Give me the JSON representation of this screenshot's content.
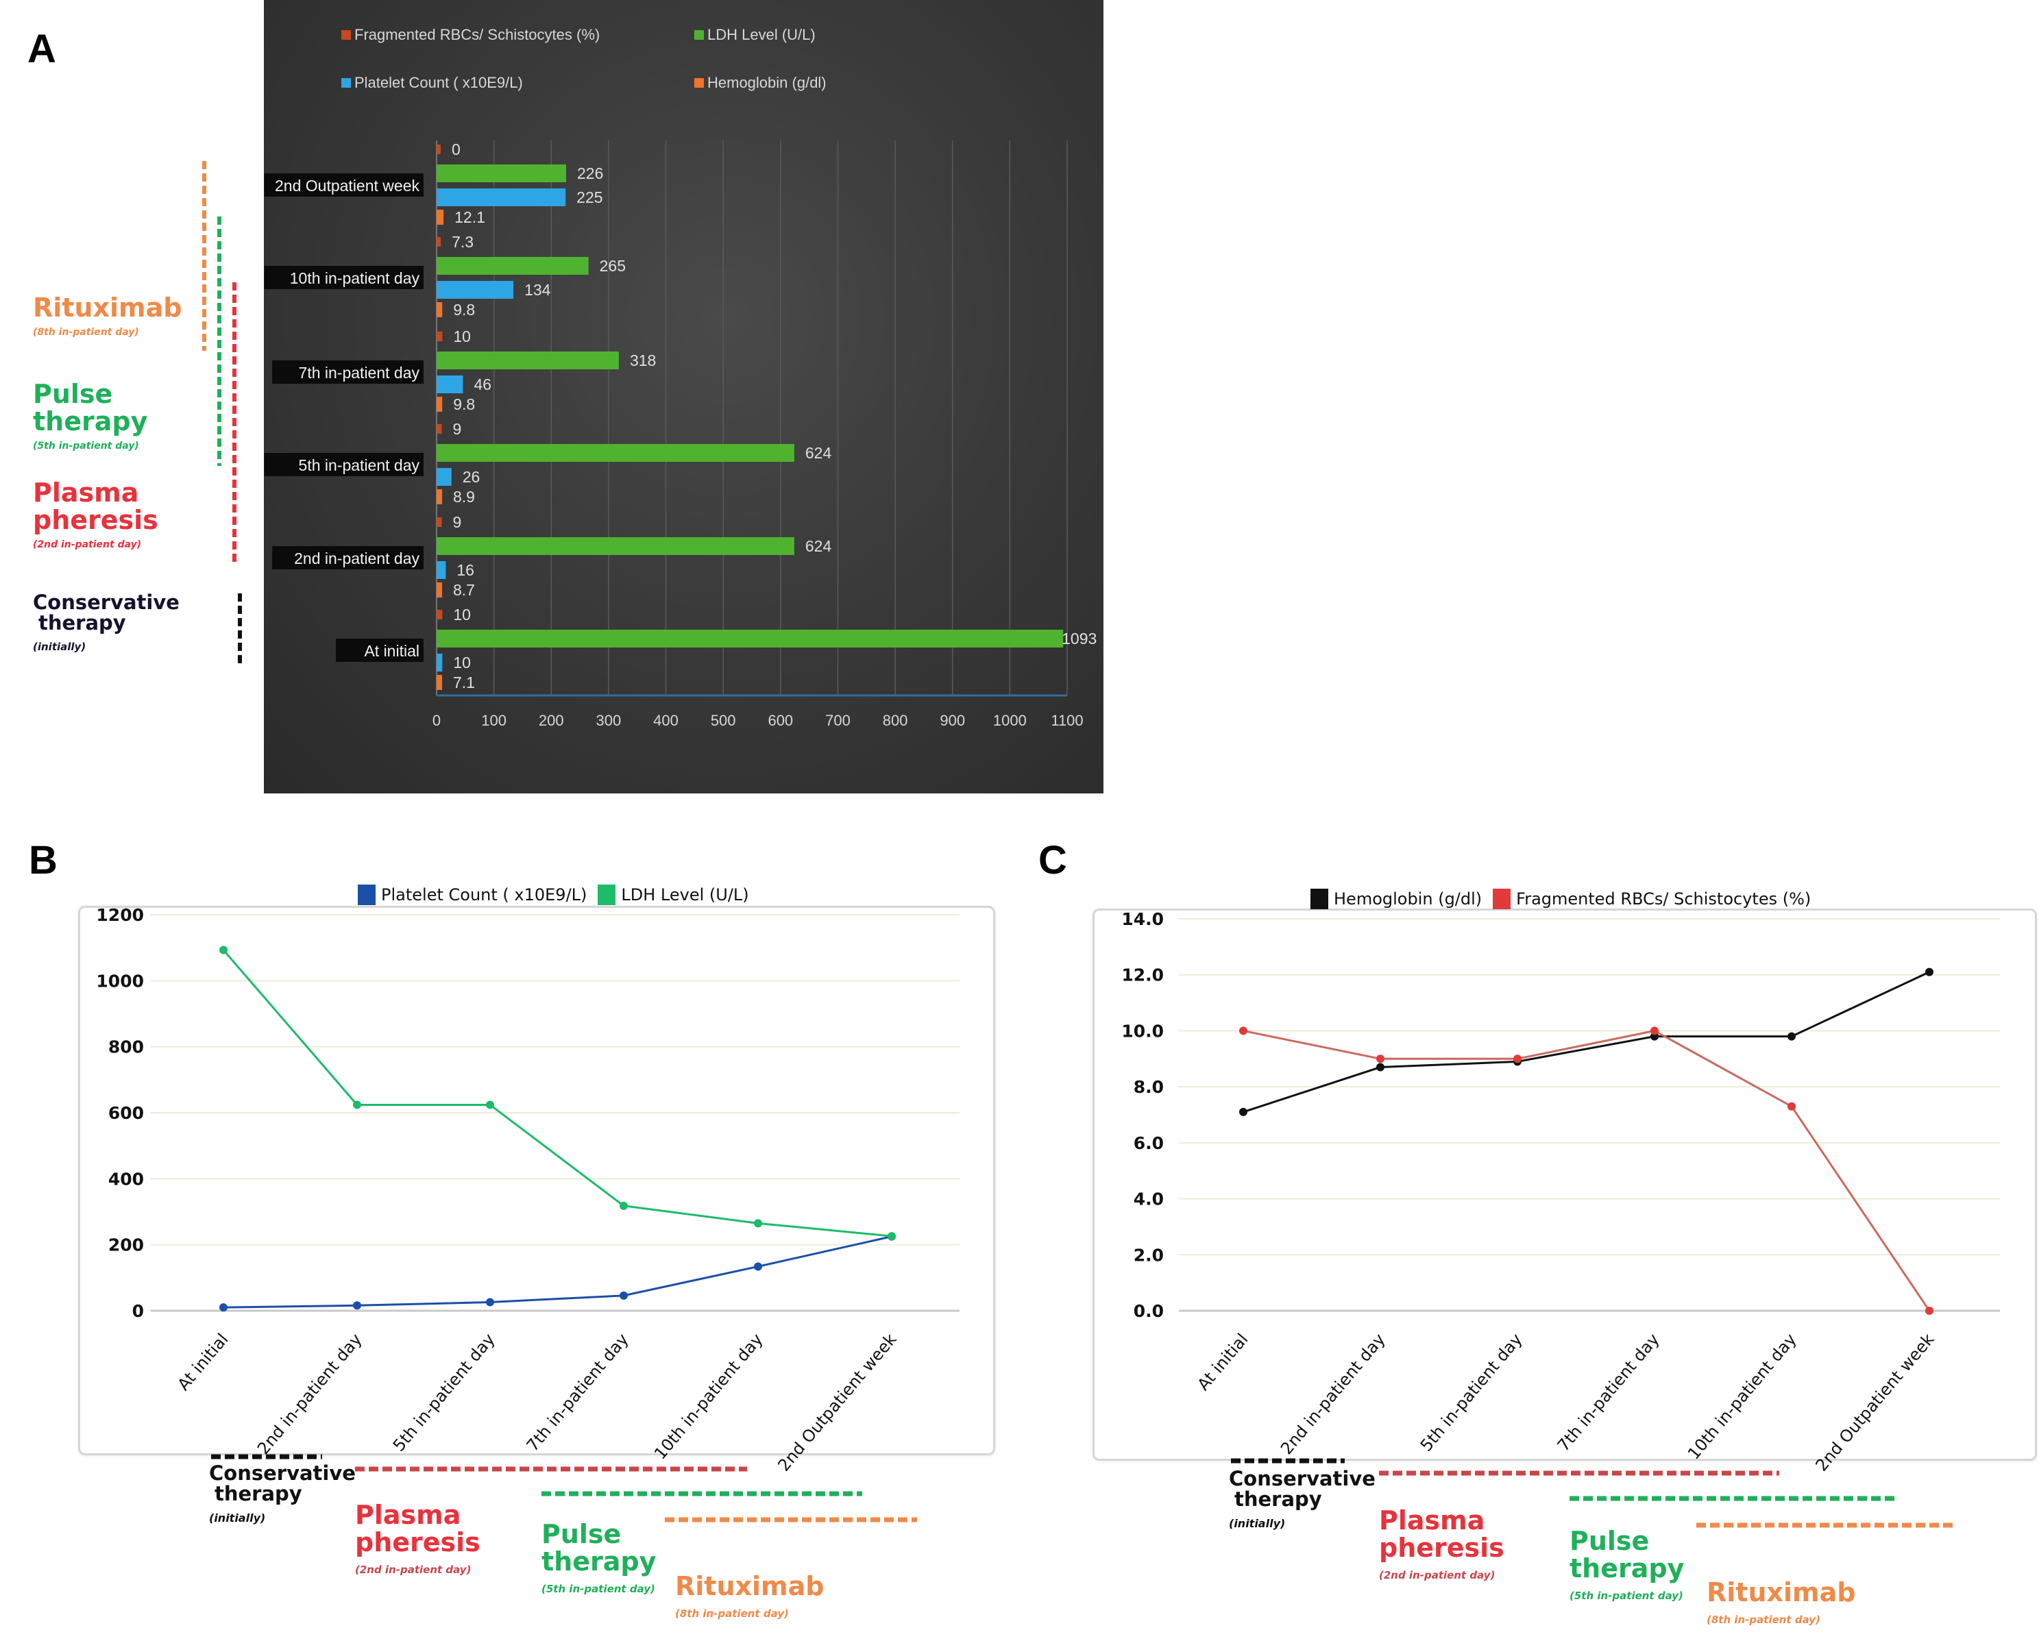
{
  "figure": {
    "panel_labels": [
      "A",
      "B",
      "C"
    ]
  },
  "treatments": [
    {
      "name": "Conservative therapy",
      "line1": "Conservative",
      "line2": "therapy",
      "when": "(initially)",
      "color": "#111111"
    },
    {
      "name": "Plasma pheresis",
      "line1": "Plasma",
      "line2": "pheresis",
      "when": "(2nd in-patient day)",
      "color": "#e8323c"
    },
    {
      "name": "Pulse therapy",
      "line1": "Pulse",
      "line2": "therapy",
      "when": "(5th in-patient day)",
      "color": "#1fb05a"
    },
    {
      "name": "Rituximab",
      "line1": "Rituximab",
      "line2": "",
      "when": "(8th in-patient day)",
      "color": "#f08a48"
    }
  ],
  "chart_data": [
    {
      "panel": "A",
      "type": "bar",
      "orientation": "horizontal",
      "categories": [
        "At initial",
        "2nd in-patient day",
        "5th  in-patient day",
        "7th in-patient day",
        "10th in-patient day",
        "2nd Outpatient week"
      ],
      "series": [
        {
          "name": "Fragmented RBCs/ Schistocytes (%)",
          "color": "#c9481e",
          "values": [
            10,
            9,
            9,
            10,
            7.3,
            0
          ]
        },
        {
          "name": "LDH Level (U/L)",
          "color": "#4fb330",
          "values": [
            1093,
            624,
            624,
            318,
            265,
            226
          ]
        },
        {
          "name": "Platelet Count ( x10E9/L)",
          "color": "#2ea6e6",
          "values": [
            10,
            16,
            26,
            46,
            134,
            225
          ]
        },
        {
          "name": "Hemoglobin (g/dl)",
          "color": "#f0742a",
          "values": [
            7.1,
            8.7,
            8.9,
            9.8,
            9.8,
            12.1
          ]
        }
      ],
      "data_labels": [
        [
          "10",
          "1093",
          "10",
          "7.1"
        ],
        [
          "9",
          "624",
          "16",
          "8.7"
        ],
        [
          "9",
          "624",
          "26",
          "8.9"
        ],
        [
          "10",
          "318",
          "46",
          "9.8"
        ],
        [
          "7.3",
          "265",
          "134",
          "9.8"
        ],
        [
          "0",
          "226",
          "225",
          "12.1"
        ]
      ],
      "xlim": [
        0,
        1100
      ],
      "xticks": [
        "0",
        "100",
        "200",
        "300",
        "400",
        "500",
        "600",
        "700",
        "800",
        "900",
        "1000",
        "1100"
      ],
      "legend_labels": [
        "Fragmented RBCs/ Schistocytes (%)",
        "LDH Level (U/L)",
        "Platelet Count ( x10E9/L)",
        "Hemoglobin (g/dl)"
      ],
      "legend_position": "top",
      "grid": true,
      "title": "",
      "xlabel": "",
      "ylabel": ""
    },
    {
      "panel": "B",
      "type": "line",
      "x": [
        "At initial",
        "2nd in-patient day",
        "5th in-patient day",
        "7th in-patient day",
        "10th in-patient day",
        "2nd Outpatient week"
      ],
      "series": [
        {
          "name": "Platelet Count ( x10E9/L)",
          "color": "#1b4fa8",
          "values": [
            10,
            16,
            26,
            46,
            134,
            225
          ]
        },
        {
          "name": "LDH Level (U/L)",
          "color": "#1dbb6a",
          "values": [
            1093,
            624,
            624,
            318,
            265,
            226
          ]
        }
      ],
      "ylim": [
        0,
        1200
      ],
      "yticks": [
        "0",
        "200",
        "400",
        "600",
        "800",
        "1000",
        "1200"
      ],
      "legend_position": "top",
      "grid": true,
      "title": "",
      "xlabel": "",
      "ylabel": ""
    },
    {
      "panel": "C",
      "type": "line",
      "x": [
        "At initial",
        "2nd in-patient day",
        "5th in-patient day",
        "7th in-patient day",
        "10th in-patient day",
        "2nd Outpatient week"
      ],
      "series": [
        {
          "name": "Hemoglobin (g/dl)",
          "color": "#111111",
          "values": [
            7.1,
            8.7,
            8.9,
            9.8,
            9.8,
            12.1
          ]
        },
        {
          "name": "Fragmented RBCs/ Schistocytes (%)",
          "color": "#e03a3a",
          "line_color": "#c96a60",
          "values": [
            10,
            9,
            9,
            10,
            7.3,
            0
          ]
        }
      ],
      "ylim": [
        0,
        14
      ],
      "yticks": [
        "0.0",
        "2.0",
        "4.0",
        "6.0",
        "8.0",
        "10.0",
        "12.0",
        "14.0"
      ],
      "legend_position": "top",
      "grid": true,
      "title": "",
      "xlabel": "",
      "ylabel": ""
    }
  ]
}
